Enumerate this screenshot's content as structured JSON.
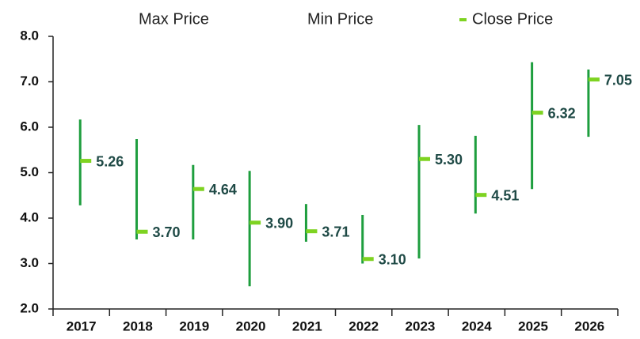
{
  "chart_data": {
    "type": "hlc",
    "categories": [
      "2017",
      "2018",
      "2019",
      "2020",
      "2021",
      "2022",
      "2023",
      "2024",
      "2025",
      "2026"
    ],
    "series": [
      {
        "name": "Max Price",
        "color": "#1e9e3e",
        "values": [
          6.17,
          5.74,
          5.17,
          5.04,
          4.31,
          4.07,
          6.05,
          5.81,
          7.43,
          7.27
        ]
      },
      {
        "name": "Min Price",
        "color": "#1e9e3e",
        "values": [
          4.28,
          3.53,
          3.53,
          2.5,
          3.48,
          3.0,
          3.11,
          4.1,
          4.64,
          5.79
        ]
      },
      {
        "name": "Close Price",
        "color": "#7ed321",
        "values": [
          5.26,
          3.7,
          4.64,
          3.9,
          3.71,
          3.1,
          5.3,
          4.51,
          6.32,
          7.05
        ],
        "value_labels": [
          "5.26",
          "3.70",
          "4.64",
          "3.90",
          "3.71",
          "3.10",
          "5.30",
          "4.51",
          "6.32",
          "7.05"
        ]
      }
    ],
    "ylim": [
      2,
      8
    ],
    "yticks": [
      {
        "value": 2,
        "label": "2.0"
      },
      {
        "value": 3,
        "label": "3.0"
      },
      {
        "value": 4,
        "label": "4.0"
      },
      {
        "value": 5,
        "label": "5.0"
      },
      {
        "value": 6,
        "label": "6.0"
      },
      {
        "value": 7,
        "label": "7.0"
      },
      {
        "value": 8,
        "label": "8.0"
      }
    ]
  }
}
